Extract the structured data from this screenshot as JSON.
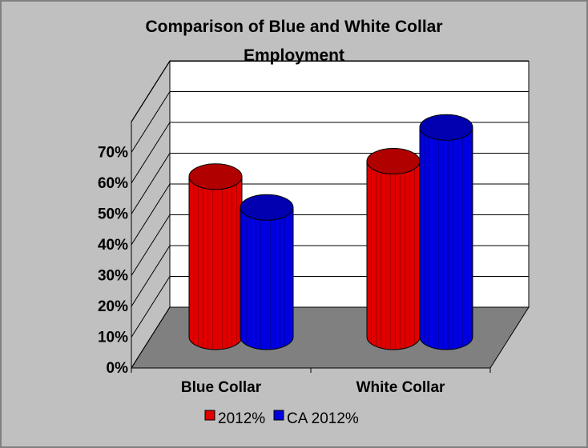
{
  "chart_data": {
    "type": "bar",
    "title": "Comparison of Blue and White Collar Employment",
    "title_lines": [
      "Comparison of Blue and White Collar",
      "Employment"
    ],
    "categories": [
      "Blue Collar",
      "White Collar"
    ],
    "series": [
      {
        "name": "2012%",
        "values": [
          52,
          57
        ],
        "color": "#e00000",
        "top_color": "#b00000"
      },
      {
        "name": "CA 2012%",
        "values": [
          42,
          68
        ],
        "color": "#0000e0",
        "top_color": "#0000b0"
      }
    ],
    "ylim": [
      0,
      70
    ],
    "ytick_values": [
      0,
      10,
      20,
      30,
      40,
      50,
      60,
      70
    ],
    "ytick_labels": [
      "0%",
      "10%",
      "20%",
      "30%",
      "40%",
      "50%",
      "60%",
      "70%"
    ],
    "grid": true,
    "legend_position": "bottom",
    "xlabel": "",
    "ylabel": ""
  },
  "colors": {
    "background": "#c0c0c0",
    "back_wall": "#ffffff",
    "side_wall": "#c0c0c0",
    "floor": "#808080"
  }
}
